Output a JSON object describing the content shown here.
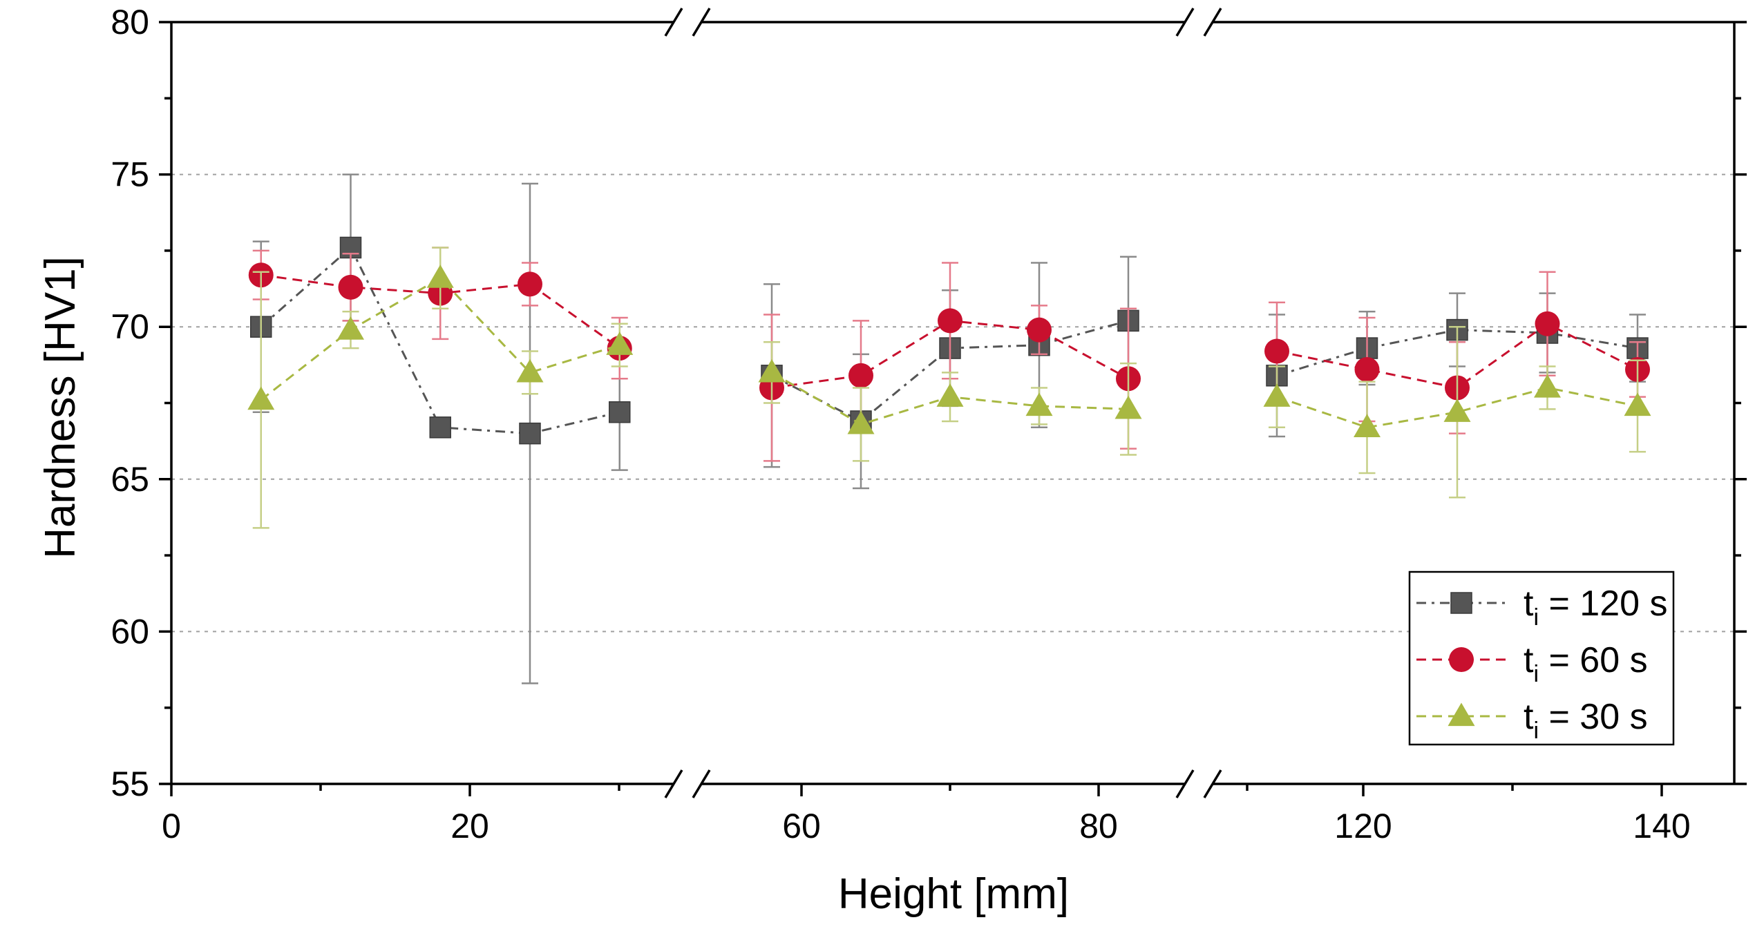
{
  "chart_data": {
    "type": "scatter",
    "title": "",
    "xlabel": "Height [mm]",
    "ylabel": "Hardness [HV1]",
    "ylim": [
      55,
      80
    ],
    "yticks": [
      55,
      60,
      65,
      70,
      75,
      80
    ],
    "grid_y": [
      60,
      65,
      70,
      75
    ],
    "x_axis_breaks": [
      {
        "before": 30,
        "after": 55,
        "ticks": [
          0,
          20
        ]
      },
      {
        "before": 85,
        "after": 105
      }
    ],
    "x_segments": [
      {
        "range": [
          0,
          40
        ],
        "ticks": [
          0,
          20
        ]
      },
      {
        "range": [
          51,
          86
        ],
        "ticks": [
          60,
          80
        ]
      },
      {
        "range": [
          102,
          142
        ],
        "ticks": [
          120,
          140
        ]
      }
    ],
    "tick_labels_x": [
      "0",
      "20",
      "60",
      "80",
      "120",
      "140"
    ],
    "tick_labels_y": [
      "55",
      "60",
      "65",
      "70",
      "75",
      "80"
    ],
    "series": [
      {
        "name": "120 s",
        "marker": "square",
        "line": "dash-dot",
        "color": "#555555",
        "errcolor": "#8a8a8a",
        "x": [
          6,
          12,
          18,
          24,
          30,
          58,
          64,
          70,
          76,
          82,
          108,
          114,
          120,
          126,
          132
        ],
        "y": [
          70.0,
          72.6,
          66.7,
          66.5,
          67.2,
          68.4,
          66.9,
          69.3,
          69.4,
          70.2,
          68.4,
          69.3,
          69.9,
          69.8,
          69.3
        ],
        "err": [
          2.8,
          2.4,
          0.3,
          8.2,
          1.9,
          3.0,
          2.2,
          1.9,
          2.7,
          2.1,
          2.0,
          1.2,
          1.2,
          1.3,
          1.1
        ]
      },
      {
        "name": "60 s",
        "marker": "circle",
        "line": "dash",
        "color": "#c8102e",
        "errcolor": "#e57a8a",
        "x": [
          6,
          12,
          18,
          24,
          30,
          58,
          64,
          70,
          76,
          82,
          108,
          114,
          120,
          126,
          132
        ],
        "y": [
          71.7,
          71.3,
          71.1,
          71.4,
          69.3,
          68.0,
          68.4,
          70.2,
          69.9,
          68.3,
          69.2,
          68.6,
          68.0,
          70.1,
          68.6
        ],
        "err": [
          0.8,
          1.1,
          1.5,
          0.7,
          1.0,
          2.4,
          1.8,
          1.9,
          0.8,
          2.3,
          1.6,
          1.7,
          1.5,
          1.7,
          0.9
        ]
      },
      {
        "name": "30 s",
        "marker": "triangle",
        "line": "dash",
        "color": "#a8b842",
        "errcolor": "#c5cf86",
        "x": [
          6,
          12,
          18,
          24,
          30,
          58,
          64,
          70,
          76,
          82,
          108,
          114,
          120,
          126,
          132
        ],
        "y": [
          67.6,
          69.9,
          71.6,
          68.5,
          69.4,
          68.5,
          66.8,
          67.7,
          67.4,
          67.3,
          67.7,
          66.7,
          67.2,
          68.0,
          67.4
        ],
        "err": [
          4.2,
          0.6,
          1.0,
          0.7,
          0.7,
          1.0,
          1.2,
          0.8,
          0.6,
          1.5,
          1.0,
          1.5,
          2.8,
          0.7,
          1.5
        ]
      }
    ],
    "legend": {
      "position": "bottom-right",
      "entries": [
        {
          "prefix": "t",
          "sub": "i",
          "text": " = 120 s"
        },
        {
          "prefix": "t",
          "sub": "i",
          "text": " = 60 s"
        },
        {
          "prefix": "t",
          "sub": "i",
          "text": " = 30 s"
        }
      ]
    }
  }
}
